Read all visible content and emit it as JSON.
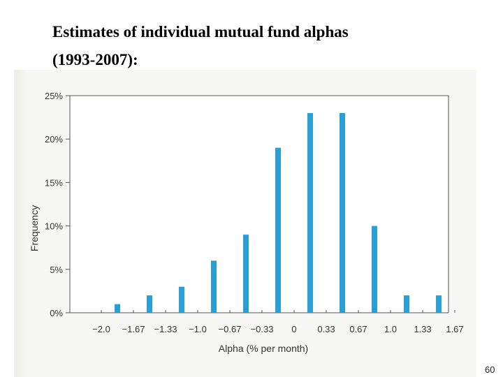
{
  "slide": {
    "title_line1": "Estimates of individual mutual fund alphas",
    "title_line2": "(1993-2007):",
    "page_number": "60"
  },
  "colors": {
    "bar": "#2a9fd6",
    "axis": "#555555",
    "text": "#333333"
  },
  "chart_data": {
    "type": "bar",
    "title": "",
    "xlabel": "Alpha (% per month)",
    "ylabel": "Frequency",
    "x_tick_labels": [
      "−2.0",
      "−1.67",
      "−1.33",
      "−1.0",
      "−0.67",
      "−0.33",
      "0",
      "0.33",
      "0.67",
      "1.0",
      "1.33",
      "1.67"
    ],
    "y_tick_labels": [
      "0%",
      "5%",
      "10%",
      "15%",
      "20%",
      "25%"
    ],
    "ylim": [
      0,
      25
    ],
    "categories": [
      "−1.83",
      "−1.5",
      "−1.17",
      "−0.83",
      "−0.5",
      "−0.17",
      "0.17",
      "0.5",
      "0.83",
      "1.17",
      "1.5"
    ],
    "values": [
      1,
      2,
      3,
      6,
      9,
      19,
      23,
      23,
      10,
      2,
      2
    ],
    "grid": false,
    "legend": "none"
  }
}
